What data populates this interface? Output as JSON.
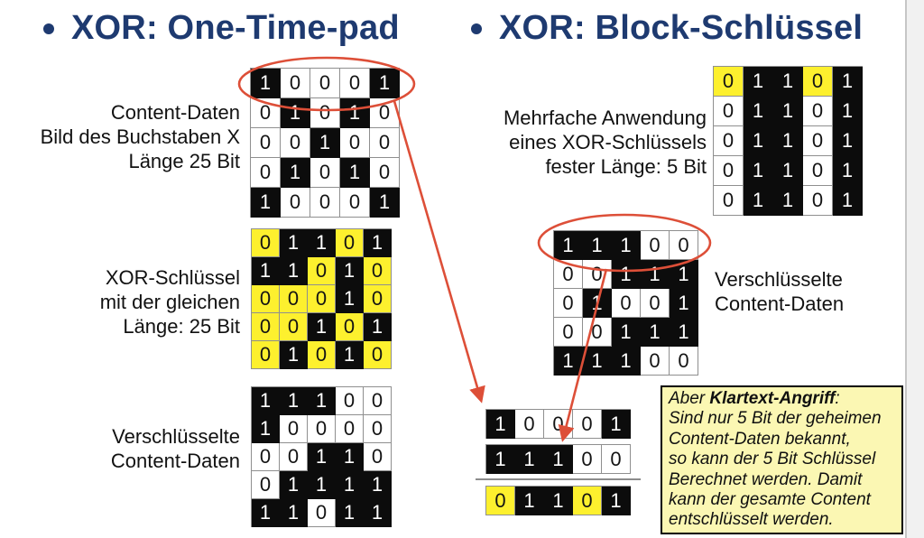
{
  "slide": {
    "headings": {
      "left": "XOR: One-Time-pad",
      "right": "XOR: Block-Schlüssel"
    },
    "labels": {
      "content_daten": [
        "Content-Daten",
        "Bild des Buchstaben X",
        "Länge 25 Bit"
      ],
      "xor_schluessel": [
        "XOR-Schlüssel",
        "mit der gleichen",
        "Länge: 25 Bit"
      ],
      "verschluesselte_left": [
        "Verschlüsselte",
        "Content-Daten"
      ],
      "mehrfache_anwendung": [
        "Mehrfache Anwendung",
        "eines XOR-Schlüssels",
        "fester Länge: 5 Bit"
      ],
      "verschluesselte_right": [
        "Verschlüsselte",
        "Content-Daten"
      ]
    },
    "grids": {
      "content_x": {
        "values": [
          [
            1,
            0,
            0,
            0,
            1
          ],
          [
            0,
            1,
            0,
            1,
            0
          ],
          [
            0,
            0,
            1,
            0,
            0
          ],
          [
            0,
            1,
            0,
            1,
            0
          ],
          [
            1,
            0,
            0,
            0,
            1
          ]
        ],
        "yellow_zeros": "none"
      },
      "otp_key": {
        "values": [
          [
            0,
            1,
            1,
            0,
            1
          ],
          [
            1,
            1,
            0,
            1,
            0
          ],
          [
            0,
            0,
            0,
            1,
            0
          ],
          [
            0,
            0,
            1,
            0,
            1
          ],
          [
            0,
            1,
            0,
            1,
            0
          ]
        ],
        "yellow_zeros": "all"
      },
      "otp_cipher": {
        "values": [
          [
            1,
            1,
            1,
            0,
            0
          ],
          [
            1,
            0,
            0,
            0,
            0
          ],
          [
            0,
            0,
            1,
            1,
            0
          ],
          [
            0,
            1,
            1,
            1,
            1
          ],
          [
            1,
            1,
            0,
            1,
            1
          ]
        ],
        "yellow_zeros": "none"
      },
      "block_key": {
        "values": [
          [
            0,
            1,
            1,
            0,
            1
          ],
          [
            0,
            1,
            1,
            0,
            1
          ],
          [
            0,
            1,
            1,
            0,
            1
          ],
          [
            0,
            1,
            1,
            0,
            1
          ],
          [
            0,
            1,
            1,
            0,
            1
          ]
        ],
        "yellow_zeros": "first_row"
      },
      "block_cipher": {
        "values": [
          [
            1,
            1,
            1,
            0,
            0
          ],
          [
            0,
            0,
            1,
            1,
            1
          ],
          [
            0,
            1,
            0,
            0,
            1
          ],
          [
            0,
            0,
            1,
            1,
            1
          ],
          [
            1,
            1,
            1,
            0,
            0
          ]
        ],
        "yellow_zeros": "none"
      },
      "known_plaintext": {
        "values": [
          [
            1,
            0,
            0,
            0,
            1
          ]
        ],
        "yellow_zeros": "none"
      },
      "known_ciphertext": {
        "values": [
          [
            1,
            1,
            1,
            0,
            0
          ]
        ],
        "yellow_zeros": "none"
      },
      "derived_key": {
        "values": [
          [
            0,
            1,
            1,
            0,
            1
          ]
        ],
        "yellow_zeros": "all"
      }
    },
    "note": {
      "lines": [
        [
          {
            "text": "Aber ",
            "bold": false
          },
          {
            "text": "Klartext-Angriff",
            "bold": true
          },
          {
            "text": ":",
            "bold": false
          }
        ],
        [
          {
            "text": "Sind nur 5 Bit der geheimen",
            "bold": false
          }
        ],
        [
          {
            "text": "Content-Daten bekannt,",
            "bold": false
          }
        ],
        [
          {
            "text": "so kann der 5 Bit Schlüssel",
            "bold": false
          }
        ],
        [
          {
            "text": "Berechnet werden. Damit",
            "bold": false
          }
        ],
        [
          {
            "text": "kann der gesamte Content",
            "bold": false
          }
        ],
        [
          {
            "text": "entschlüsselt werden.",
            "bold": false
          }
        ]
      ]
    },
    "colors": {
      "heading_blue": "#1e3a70",
      "annotation_red": "#dd4f38",
      "cell_yellow": "#fdf02e",
      "cell_black": "#0c0c0c",
      "note_bg": "#fbf7b3"
    }
  }
}
